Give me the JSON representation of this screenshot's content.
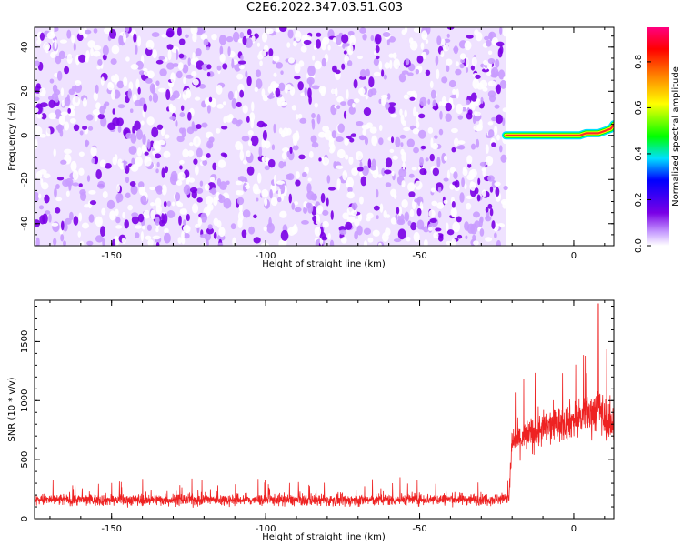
{
  "title": "C2E6.2022.347.03.51.G03",
  "chart_data": [
    {
      "type": "heatmap",
      "xlabel": "Height of straight line (km)",
      "ylabel": "Frequency (Hz)",
      "xlim": [
        -175,
        13
      ],
      "ylim": [
        -50,
        49
      ],
      "xticks": [
        -150,
        -100,
        -50,
        0
      ],
      "yticks": [
        -40,
        -20,
        0,
        20,
        40
      ],
      "noise_region_x": [
        -175,
        -22
      ],
      "signal_track": {
        "x": [
          -22,
          -20,
          -15,
          -10,
          -5,
          0,
          2,
          4,
          6,
          8,
          10,
          12,
          13
        ],
        "frequency": [
          0,
          0,
          0,
          0,
          0,
          0,
          0,
          1,
          1,
          1,
          2,
          3,
          5
        ]
      },
      "colorbar": {
        "label": "Normalized spectral amplitude",
        "range": [
          0,
          0.95
        ],
        "ticks": [
          0.0,
          0.2,
          0.4,
          0.6,
          0.8
        ],
        "tick_labels": [
          "0.0",
          "0.2",
          "0.4",
          "0.6",
          "0.8"
        ],
        "colormap": [
          "#ffffff",
          "#c8a0ff",
          "#7a00e6",
          "#0000ff",
          "#00e0ff",
          "#00ff00",
          "#ffff00",
          "#ff8000",
          "#ff0000",
          "#ff0080"
        ]
      },
      "grid": false
    },
    {
      "type": "line",
      "xlabel": "Height of straight line (km)",
      "ylabel": "SNR (10 * v/v)",
      "xlim": [
        -175,
        13
      ],
      "ylim": [
        0,
        1850
      ],
      "xticks": [
        -150,
        -100,
        -50,
        0
      ],
      "yticks": [
        0,
        500,
        1000,
        1500
      ],
      "color": "#ee2222",
      "series": [
        {
          "x": [
            -175,
            -150,
            -125,
            -100,
            -75,
            -50,
            -25,
            -21,
            -20,
            -15,
            -10,
            -5,
            0,
            5,
            8,
            10,
            13
          ],
          "mean": [
            160,
            160,
            160,
            160,
            155,
            165,
            165,
            180,
            650,
            700,
            760,
            800,
            840,
            880,
            950,
            850,
            800
          ],
          "spread": [
            110,
            110,
            110,
            110,
            110,
            110,
            110,
            110,
            300,
            320,
            330,
            340,
            350,
            380,
            450,
            380,
            350
          ],
          "peak": {
            "x": 8,
            "y": 1820
          }
        }
      ],
      "grid": false
    }
  ]
}
